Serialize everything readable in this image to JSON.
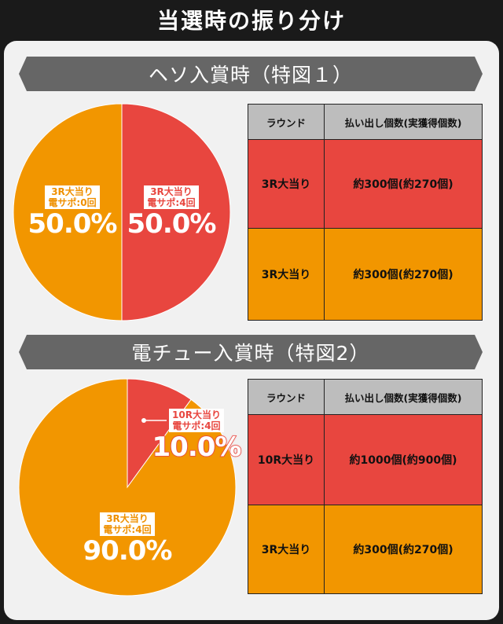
{
  "page": {
    "title": "当選時の振り分け"
  },
  "sections": [
    {
      "header": "ヘソ入賞時（特図１）",
      "table": {
        "headers": [
          "ラウンド",
          "払い出し個数(実獲得個数)"
        ],
        "rows": [
          {
            "round": "3R大当り",
            "payout": "約300個(約270個)",
            "color": "#e8463f"
          },
          {
            "round": "3R大当り",
            "payout": "約300個(約270個)",
            "color": "#f29600"
          }
        ]
      }
    },
    {
      "header": "電チュー入賞時（特図2）",
      "table": {
        "headers": [
          "ラウンド",
          "払い出し個数(実獲得個数)"
        ],
        "rows": [
          {
            "round": "10R大当り",
            "payout": "約1000個(約900個)",
            "color": "#e8463f"
          },
          {
            "round": "3R大当り",
            "payout": "約300個(約270個)",
            "color": "#f29600"
          }
        ]
      }
    }
  ],
  "chart_data": [
    {
      "type": "pie",
      "slices": [
        {
          "label_line1": "3R大当り",
          "label_line2": "電サポ:4回",
          "value": 50.0,
          "value_text": "50.0%",
          "color": "#e8463f"
        },
        {
          "label_line1": "3R大当り",
          "label_line2": "電サポ:0回",
          "value": 50.0,
          "value_text": "50.0%",
          "color": "#f29600"
        }
      ]
    },
    {
      "type": "pie",
      "slices": [
        {
          "label_line1": "10R大当り",
          "label_line2": "電サポ:4回",
          "value": 10.0,
          "value_text": "10.0%",
          "color": "#e8463f"
        },
        {
          "label_line1": "3R大当り",
          "label_line2": "電サポ:4回",
          "value": 90.0,
          "value_text": "90.0%",
          "color": "#f29600"
        }
      ]
    }
  ]
}
